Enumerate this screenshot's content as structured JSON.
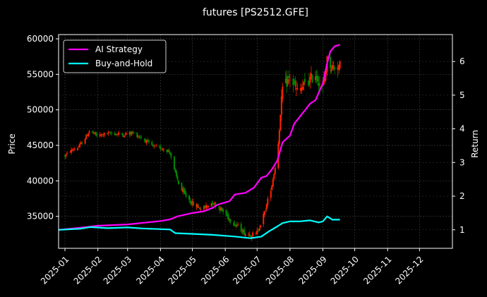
{
  "chart_data": {
    "type": "line",
    "title": "futures [PS2512.GFE]",
    "ylabel_left": "Price",
    "ylabel_right": "Return",
    "grid": true,
    "legend_position": "top-left",
    "x_range": [
      "2024-12-26",
      "2026-01-01"
    ],
    "y_left_range": [
      30500,
      60600
    ],
    "y_right_range": [
      0.45,
      6.8
    ],
    "x_ticks": [
      "2025-01",
      "2025-02",
      "2025-03",
      "2025-04",
      "2025-05",
      "2025-06",
      "2025-07",
      "2025-08",
      "2025-09",
      "2025-10",
      "2025-11",
      "2025-12"
    ],
    "y_left_ticks": [
      "35000",
      "40000",
      "45000",
      "50000",
      "55000",
      "60000"
    ],
    "y_right_ticks": [
      "1",
      "2",
      "3",
      "4",
      "5",
      "6"
    ],
    "colors": {
      "up": "#ff2200",
      "down": "#008800",
      "grid": "#444444",
      "axis": "#ffffff"
    },
    "price_anchors": [
      [
        "2025-01-01",
        43500
      ],
      [
        "2025-01-06",
        44200
      ],
      [
        "2025-01-14",
        44800
      ],
      [
        "2025-01-20",
        46000
      ],
      [
        "2025-01-24",
        47000
      ],
      [
        "2025-02-01",
        46300
      ],
      [
        "2025-02-07",
        46600
      ],
      [
        "2025-02-14",
        46700
      ],
      [
        "2025-02-25",
        46500
      ],
      [
        "2025-03-05",
        46800
      ],
      [
        "2025-03-15",
        46000
      ],
      [
        "2025-03-25",
        44800
      ],
      [
        "2025-04-05",
        44500
      ],
      [
        "2025-04-10",
        44000
      ],
      [
        "2025-04-14",
        41500
      ],
      [
        "2025-04-20",
        38800
      ],
      [
        "2025-05-01",
        36800
      ],
      [
        "2025-05-10",
        36000
      ],
      [
        "2025-05-20",
        37000
      ],
      [
        "2025-05-28",
        36000
      ],
      [
        "2025-06-08",
        34200
      ],
      [
        "2025-06-20",
        32600
      ],
      [
        "2025-06-30",
        32400
      ],
      [
        "2025-07-08",
        35500
      ],
      [
        "2025-07-15",
        39500
      ],
      [
        "2025-07-20",
        43500
      ],
      [
        "2025-07-25",
        53000
      ],
      [
        "2025-08-01",
        54500
      ],
      [
        "2025-08-08",
        52500
      ],
      [
        "2025-08-15",
        53500
      ],
      [
        "2025-08-25",
        55000
      ],
      [
        "2025-09-01",
        53000
      ],
      [
        "2025-09-05",
        57000
      ],
      [
        "2025-09-10",
        56000
      ],
      [
        "2025-09-17",
        56200
      ]
    ],
    "series": [
      {
        "name": "AI Strategy",
        "color": "#ff00ff",
        "points": [
          [
            "2024-12-26",
            1.0
          ],
          [
            "2025-01-15",
            1.06
          ],
          [
            "2025-02-01",
            1.12
          ],
          [
            "2025-03-01",
            1.16
          ],
          [
            "2025-04-01",
            1.26
          ],
          [
            "2025-04-10",
            1.31
          ],
          [
            "2025-04-17",
            1.4
          ],
          [
            "2025-05-01",
            1.5
          ],
          [
            "2025-05-12",
            1.55
          ],
          [
            "2025-05-20",
            1.65
          ],
          [
            "2025-05-25",
            1.75
          ],
          [
            "2025-06-05",
            1.85
          ],
          [
            "2025-06-10",
            2.05
          ],
          [
            "2025-06-20",
            2.1
          ],
          [
            "2025-06-28",
            2.25
          ],
          [
            "2025-07-05",
            2.55
          ],
          [
            "2025-07-10",
            2.6
          ],
          [
            "2025-07-15",
            2.8
          ],
          [
            "2025-07-20",
            3.05
          ],
          [
            "2025-07-25",
            3.6
          ],
          [
            "2025-08-01",
            3.8
          ],
          [
            "2025-08-05",
            4.15
          ],
          [
            "2025-08-10",
            4.35
          ],
          [
            "2025-08-15",
            4.55
          ],
          [
            "2025-08-20",
            4.75
          ],
          [
            "2025-08-25",
            4.85
          ],
          [
            "2025-09-01",
            5.35
          ],
          [
            "2025-09-05",
            5.95
          ],
          [
            "2025-09-08",
            6.3
          ],
          [
            "2025-09-12",
            6.45
          ],
          [
            "2025-09-17",
            6.5
          ]
        ]
      },
      {
        "name": "Buy-and-Hold",
        "color": "#00ffff",
        "points": [
          [
            "2024-12-26",
            1.0
          ],
          [
            "2025-01-15",
            1.03
          ],
          [
            "2025-01-25",
            1.08
          ],
          [
            "2025-02-10",
            1.05
          ],
          [
            "2025-03-01",
            1.07
          ],
          [
            "2025-03-15",
            1.04
          ],
          [
            "2025-04-01",
            1.02
          ],
          [
            "2025-04-10",
            1.01
          ],
          [
            "2025-04-15",
            0.9
          ],
          [
            "2025-05-01",
            0.88
          ],
          [
            "2025-05-20",
            0.85
          ],
          [
            "2025-06-10",
            0.8
          ],
          [
            "2025-06-25",
            0.75
          ],
          [
            "2025-07-05",
            0.8
          ],
          [
            "2025-07-12",
            0.95
          ],
          [
            "2025-07-20",
            1.1
          ],
          [
            "2025-07-25",
            1.2
          ],
          [
            "2025-08-01",
            1.25
          ],
          [
            "2025-08-10",
            1.25
          ],
          [
            "2025-08-20",
            1.28
          ],
          [
            "2025-08-28",
            1.22
          ],
          [
            "2025-09-01",
            1.25
          ],
          [
            "2025-09-05",
            1.4
          ],
          [
            "2025-09-10",
            1.3
          ],
          [
            "2025-09-17",
            1.3
          ]
        ]
      }
    ]
  }
}
